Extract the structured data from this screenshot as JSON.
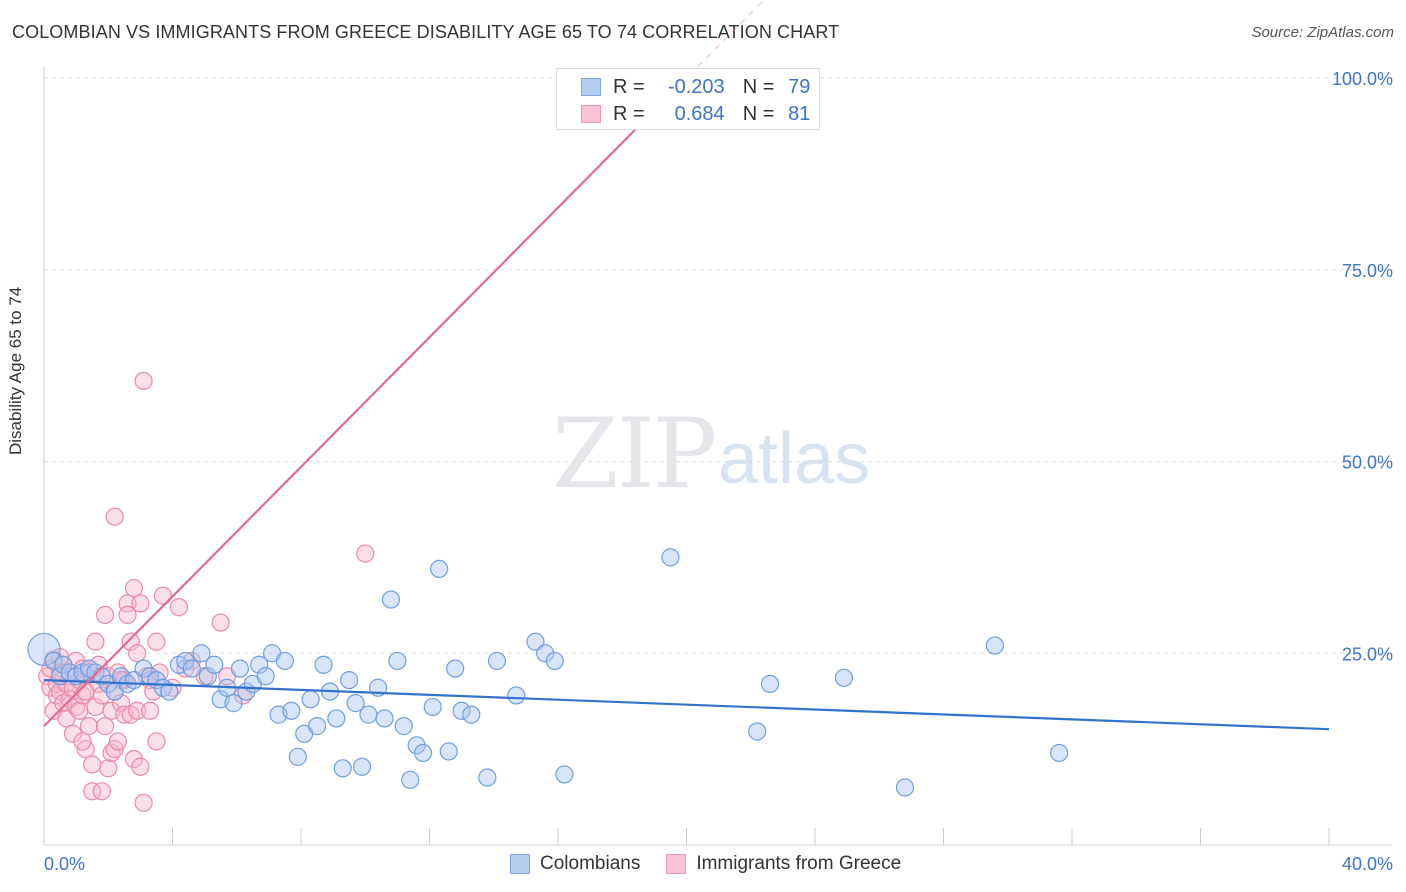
{
  "header": {
    "title": "COLOMBIAN VS IMMIGRANTS FROM GREECE DISABILITY AGE 65 TO 74 CORRELATION CHART",
    "source": "Source: ZipAtlas.com"
  },
  "watermark": {
    "zip": "ZIP",
    "atlas": "atlas"
  },
  "legend": {
    "rows": [
      {
        "r_label": "R =",
        "r_value": "-0.203",
        "n_label": "N =",
        "n_value": "79"
      },
      {
        "r_label": "R =",
        "r_value": "0.684",
        "n_label": "N =",
        "n_value": "81"
      }
    ]
  },
  "bottom_legend": {
    "colombians": "Colombians",
    "greece": "Immigrants from Greece"
  },
  "colors": {
    "blue_fill": "#a9c6ef",
    "blue_stroke": "#6f9ee0",
    "blue_line": "#3373cc",
    "pink_fill": "#f7b9cb",
    "pink_stroke": "#ea8aa6",
    "pink_line": "#e06a92",
    "grid": "#dddddd",
    "axis_text": "#3d73c8"
  },
  "chart_data": {
    "type": "scatter",
    "title": "COLOMBIAN VS IMMIGRANTS FROM GREECE DISABILITY AGE 65 TO 74 CORRELATION CHART",
    "xlabel": "",
    "ylabel": "Disability Age 65 to 74",
    "xlim": [
      0,
      40
    ],
    "ylim": [
      0,
      100
    ],
    "x_tick_labels": [
      "0.0%",
      "40.0%"
    ],
    "y_ticks": [
      25,
      50,
      75,
      100
    ],
    "y_tick_labels": [
      "25.0%",
      "50.0%",
      "75.0%",
      "100.0%"
    ],
    "grid": true,
    "series": [
      {
        "name": "Colombians",
        "r": -0.203,
        "n": 79,
        "trend": {
          "x": [
            0,
            40
          ],
          "y": [
            21.5,
            15.1
          ]
        },
        "points": [
          [
            0,
            25.5
          ],
          [
            0.3,
            24
          ],
          [
            0.5,
            22
          ],
          [
            0.6,
            23.5
          ],
          [
            0.8,
            22.5
          ],
          [
            1.0,
            22
          ],
          [
            1.2,
            22.5
          ],
          [
            1.4,
            23
          ],
          [
            1.6,
            22.5
          ],
          [
            1.8,
            22
          ],
          [
            2.0,
            21
          ],
          [
            2.2,
            20
          ],
          [
            2.4,
            22
          ],
          [
            2.6,
            21
          ],
          [
            2.8,
            21.5
          ],
          [
            3.1,
            23
          ],
          [
            3.3,
            22
          ],
          [
            3.5,
            21.5
          ],
          [
            3.7,
            20.5
          ],
          [
            3.9,
            20
          ],
          [
            4.2,
            23.5
          ],
          [
            4.4,
            24
          ],
          [
            4.6,
            23
          ],
          [
            4.9,
            25
          ],
          [
            5.1,
            22
          ],
          [
            5.3,
            23.5
          ],
          [
            5.5,
            19
          ],
          [
            5.7,
            20.5
          ],
          [
            5.9,
            18.5
          ],
          [
            6.1,
            23
          ],
          [
            6.3,
            20
          ],
          [
            6.5,
            21
          ],
          [
            6.7,
            23.5
          ],
          [
            6.9,
            22
          ],
          [
            7.1,
            25
          ],
          [
            7.3,
            17
          ],
          [
            7.5,
            24
          ],
          [
            7.7,
            17.5
          ],
          [
            7.9,
            11.5
          ],
          [
            8.1,
            14.5
          ],
          [
            8.3,
            19
          ],
          [
            8.5,
            15.5
          ],
          [
            8.7,
            23.5
          ],
          [
            8.9,
            20
          ],
          [
            9.1,
            16.5
          ],
          [
            9.3,
            10
          ],
          [
            9.5,
            21.5
          ],
          [
            9.7,
            18.5
          ],
          [
            9.9,
            10.2
          ],
          [
            10.1,
            17
          ],
          [
            10.4,
            20.5
          ],
          [
            10.6,
            16.5
          ],
          [
            10.8,
            32
          ],
          [
            11.0,
            24
          ],
          [
            11.2,
            15.5
          ],
          [
            11.4,
            8.5
          ],
          [
            11.6,
            13
          ],
          [
            11.8,
            12
          ],
          [
            12.1,
            18
          ],
          [
            12.3,
            36
          ],
          [
            12.6,
            12.2
          ],
          [
            12.8,
            23
          ],
          [
            13.0,
            17.5
          ],
          [
            13.3,
            17
          ],
          [
            13.8,
            8.8
          ],
          [
            14.1,
            24
          ],
          [
            14.7,
            19.5
          ],
          [
            15.3,
            26.5
          ],
          [
            15.6,
            25
          ],
          [
            15.9,
            24
          ],
          [
            16.2,
            9.2
          ],
          [
            19.5,
            37.5
          ],
          [
            22.2,
            14.8
          ],
          [
            22.6,
            21
          ],
          [
            24.9,
            21.8
          ],
          [
            26.8,
            7.5
          ],
          [
            29.6,
            26
          ],
          [
            31.6,
            12
          ]
        ]
      },
      {
        "name": "Immigrants from Greece",
        "r": 0.684,
        "n": 81,
        "trend": {
          "x": [
            0,
            20
          ],
          "y": [
            15.5,
            100
          ],
          "solid_until_x": 20.1
        },
        "points": [
          [
            0.1,
            22
          ],
          [
            0.2,
            20.5
          ],
          [
            0.2,
            23
          ],
          [
            0.3,
            24.2
          ],
          [
            0.3,
            17.5
          ],
          [
            0.4,
            21
          ],
          [
            0.4,
            19.5
          ],
          [
            0.5,
            22.5
          ],
          [
            0.5,
            20
          ],
          [
            0.6,
            18.5
          ],
          [
            0.6,
            23.5
          ],
          [
            0.7,
            21
          ],
          [
            0.7,
            16.5
          ],
          [
            0.8,
            19
          ],
          [
            0.8,
            22
          ],
          [
            0.9,
            14.5
          ],
          [
            0.9,
            20.5
          ],
          [
            1.0,
            24
          ],
          [
            1.0,
            18
          ],
          [
            1.1,
            21.5
          ],
          [
            1.1,
            17.5
          ],
          [
            1.2,
            19.5
          ],
          [
            1.2,
            23
          ],
          [
            1.3,
            12.5
          ],
          [
            1.3,
            20
          ],
          [
            1.4,
            22.5
          ],
          [
            1.4,
            15.5
          ],
          [
            1.5,
            10.5
          ],
          [
            1.5,
            7
          ],
          [
            1.6,
            18
          ],
          [
            1.6,
            26.5
          ],
          [
            1.7,
            21
          ],
          [
            1.7,
            23.5
          ],
          [
            1.8,
            19.5
          ],
          [
            1.8,
            7
          ],
          [
            1.9,
            15.5
          ],
          [
            1.9,
            30
          ],
          [
            2.0,
            22
          ],
          [
            2.0,
            10
          ],
          [
            2.1,
            12
          ],
          [
            2.1,
            17.5
          ],
          [
            2.2,
            12.5
          ],
          [
            2.2,
            20
          ],
          [
            2.3,
            22.5
          ],
          [
            2.3,
            13.5
          ],
          [
            2.4,
            18.5
          ],
          [
            2.5,
            17
          ],
          [
            2.5,
            21.5
          ],
          [
            2.6,
            31.5
          ],
          [
            2.6,
            30
          ],
          [
            2.7,
            26.5
          ],
          [
            2.7,
            17
          ],
          [
            2.8,
            33.5
          ],
          [
            2.8,
            11.2
          ],
          [
            2.9,
            25
          ],
          [
            2.9,
            17.5
          ],
          [
            3.0,
            31.5
          ],
          [
            3.0,
            10.2
          ],
          [
            3.1,
            60.5
          ],
          [
            3.1,
            5.5
          ],
          [
            3.2,
            22
          ],
          [
            3.3,
            21.5
          ],
          [
            3.4,
            20
          ],
          [
            3.5,
            26.5
          ],
          [
            3.5,
            13.5
          ],
          [
            3.6,
            22.5
          ],
          [
            3.7,
            32.5
          ],
          [
            4.2,
            31
          ],
          [
            4.4,
            23
          ],
          [
            4.6,
            24
          ],
          [
            5.0,
            22
          ],
          [
            5.5,
            29
          ],
          [
            5.7,
            22
          ],
          [
            6.2,
            19.5
          ],
          [
            10.0,
            38
          ],
          [
            2.2,
            42.8
          ],
          [
            0.5,
            24.5
          ],
          [
            1.2,
            13.5
          ],
          [
            2.4,
            21.5
          ],
          [
            3.3,
            17.5
          ],
          [
            4.0,
            20.5
          ]
        ]
      }
    ]
  }
}
